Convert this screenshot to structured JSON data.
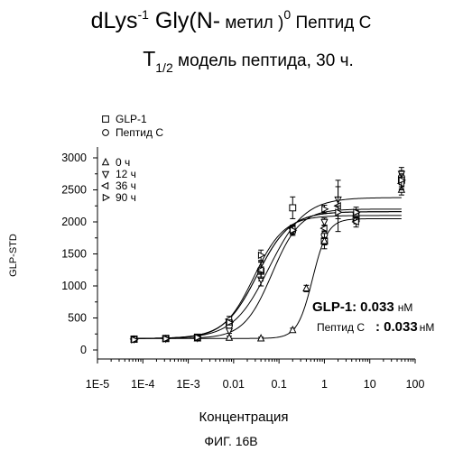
{
  "figure": {
    "title_line1": {
      "main": "dLys",
      "sup1": "-1",
      "mid": " Gly(N-",
      "small1": " метил )",
      "sup2": "0",
      "small2": " Пептид С"
    },
    "title_line2": {
      "main": "T",
      "sub": "1/2",
      "rest": " модель пептида, 30 ч."
    },
    "caption": "ФИГ. 16В"
  },
  "annotation": {
    "glp1_label": "GLP-1:",
    "glp1_value": "0.033",
    "glp1_unit": "нМ",
    "pep_label": "Пептид С",
    "pep_value": ": 0.033",
    "pep_unit": "нМ"
  },
  "chart_data": {
    "type": "scatter",
    "xlabel": "Концентрация",
    "ylabel": "GLP-STD",
    "xscale": "log",
    "xlim": [
      1e-05,
      100
    ],
    "ylim": [
      0,
      3000
    ],
    "x_ticks": [
      "1E-5",
      "1E-4",
      "1E-3",
      "0.01",
      "0.1",
      "1",
      "10",
      "100"
    ],
    "x_tick_values": [
      1e-05,
      0.0001,
      0.001,
      0.01,
      0.1,
      1,
      10,
      100
    ],
    "y_ticks": [
      "0",
      "500",
      "1000",
      "1500",
      "2000",
      "2500",
      "3000"
    ],
    "y_tick_values": [
      0,
      500,
      1000,
      1500,
      2000,
      2500,
      3000
    ],
    "grid": false,
    "legend_position": "top-left",
    "series": [
      {
        "name": "GLP-1",
        "marker": "square",
        "x": [
          6.4e-05,
          0.00032,
          0.0016,
          0.008,
          0.04,
          0.2,
          1,
          5,
          50
        ],
        "y": [
          170,
          180,
          200,
          420,
          1230,
          2220,
          1700,
          2050,
          2650
        ],
        "err": [
          20,
          25,
          30,
          40,
          150,
          170,
          60,
          70,
          130
        ],
        "curve": {
          "bottom": 180,
          "top": 2160,
          "ec50": 0.033,
          "hill": 1.2
        }
      },
      {
        "name": "Пептид С",
        "marker": "circle",
        "x": [
          6.4e-05,
          0.00032,
          0.0016,
          0.008,
          0.04,
          0.2,
          1,
          5,
          50
        ],
        "y": [
          170,
          180,
          190,
          380,
          1250,
          1850,
          1800,
          2100,
          2700
        ],
        "err": [
          20,
          25,
          30,
          40,
          120,
          60,
          60,
          70,
          100
        ],
        "curve": {
          "bottom": 180,
          "top": 2160,
          "ec50": 0.033,
          "hill": 1.2
        }
      },
      {
        "name": "0 ч",
        "marker": "triangle-up",
        "x": [
          6.4e-05,
          0.00032,
          0.0016,
          0.008,
          0.04,
          0.2,
          0.4,
          1,
          5,
          50
        ],
        "y": [
          160,
          170,
          180,
          190,
          180,
          310,
          960,
          1700,
          2050,
          2500
        ],
        "err": [
          15,
          20,
          20,
          25,
          20,
          30,
          50,
          120,
          80,
          80
        ],
        "curve": {
          "bottom": 180,
          "top": 2050,
          "ec50": 0.55,
          "hill": 2.6
        }
      },
      {
        "name": "12 ч",
        "marker": "triangle-down",
        "x": [
          6.4e-05,
          0.00032,
          0.0016,
          0.008,
          0.04,
          0.2,
          1,
          2,
          5,
          50
        ],
        "y": [
          170,
          180,
          190,
          300,
          1100,
          1850,
          2000,
          2350,
          2100,
          2750
        ],
        "err": [
          20,
          25,
          25,
          40,
          100,
          60,
          60,
          200,
          80,
          100
        ],
        "curve": {
          "bottom": 180,
          "top": 2200,
          "ec50": 0.07,
          "hill": 1.4
        }
      },
      {
        "name": "36 ч",
        "marker": "triangle-left",
        "x": [
          6.4e-05,
          0.00032,
          0.0016,
          0.008,
          0.04,
          0.2,
          1,
          2,
          5,
          50
        ],
        "y": [
          170,
          180,
          190,
          480,
          1250,
          1900,
          1900,
          2250,
          2000,
          2600
        ],
        "err": [
          20,
          25,
          30,
          45,
          130,
          50,
          50,
          400,
          80,
          100
        ],
        "curve": {
          "bottom": 180,
          "top": 2380,
          "ec50": 0.06,
          "hill": 1.1
        }
      },
      {
        "name": "90 ч",
        "marker": "triangle-right",
        "x": [
          6.4e-05,
          0.00032,
          0.0016,
          0.008,
          0.04,
          0.2,
          1,
          2,
          5,
          50
        ],
        "y": [
          160,
          175,
          195,
          430,
          1480,
          1870,
          2200,
          2150,
          2150,
          2650
        ],
        "err": [
          15,
          20,
          25,
          40,
          80,
          60,
          60,
          100,
          80,
          100
        ],
        "curve": {
          "bottom": 180,
          "top": 2100,
          "ec50": 0.028,
          "hill": 1.3
        }
      }
    ]
  }
}
